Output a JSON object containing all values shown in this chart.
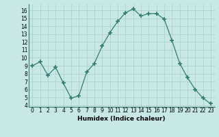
{
  "x": [
    0,
    1,
    2,
    3,
    4,
    5,
    6,
    7,
    8,
    9,
    10,
    11,
    12,
    13,
    14,
    15,
    16,
    17,
    18,
    19,
    20,
    21,
    22,
    23
  ],
  "y": [
    9.0,
    9.5,
    7.8,
    8.8,
    6.8,
    4.9,
    5.2,
    8.2,
    9.3,
    11.5,
    13.2,
    14.6,
    15.7,
    16.2,
    15.3,
    15.6,
    15.6,
    14.9,
    12.2,
    9.3,
    7.5,
    6.0,
    4.9,
    4.2
  ],
  "line_color": "#2e7d6e",
  "marker": "+",
  "marker_size": 4,
  "bg_color": "#c8e8e8",
  "grid_color": "#b0d0d0",
  "xlabel": "Humidex (Indice chaleur)",
  "ylim": [
    3.8,
    16.8
  ],
  "xlim": [
    -0.5,
    23.5
  ],
  "yticks": [
    4,
    5,
    6,
    7,
    8,
    9,
    10,
    11,
    12,
    13,
    14,
    15,
    16
  ],
  "xticks": [
    0,
    1,
    2,
    3,
    4,
    5,
    6,
    7,
    8,
    9,
    10,
    11,
    12,
    13,
    14,
    15,
    16,
    17,
    18,
    19,
    20,
    21,
    22,
    23
  ]
}
